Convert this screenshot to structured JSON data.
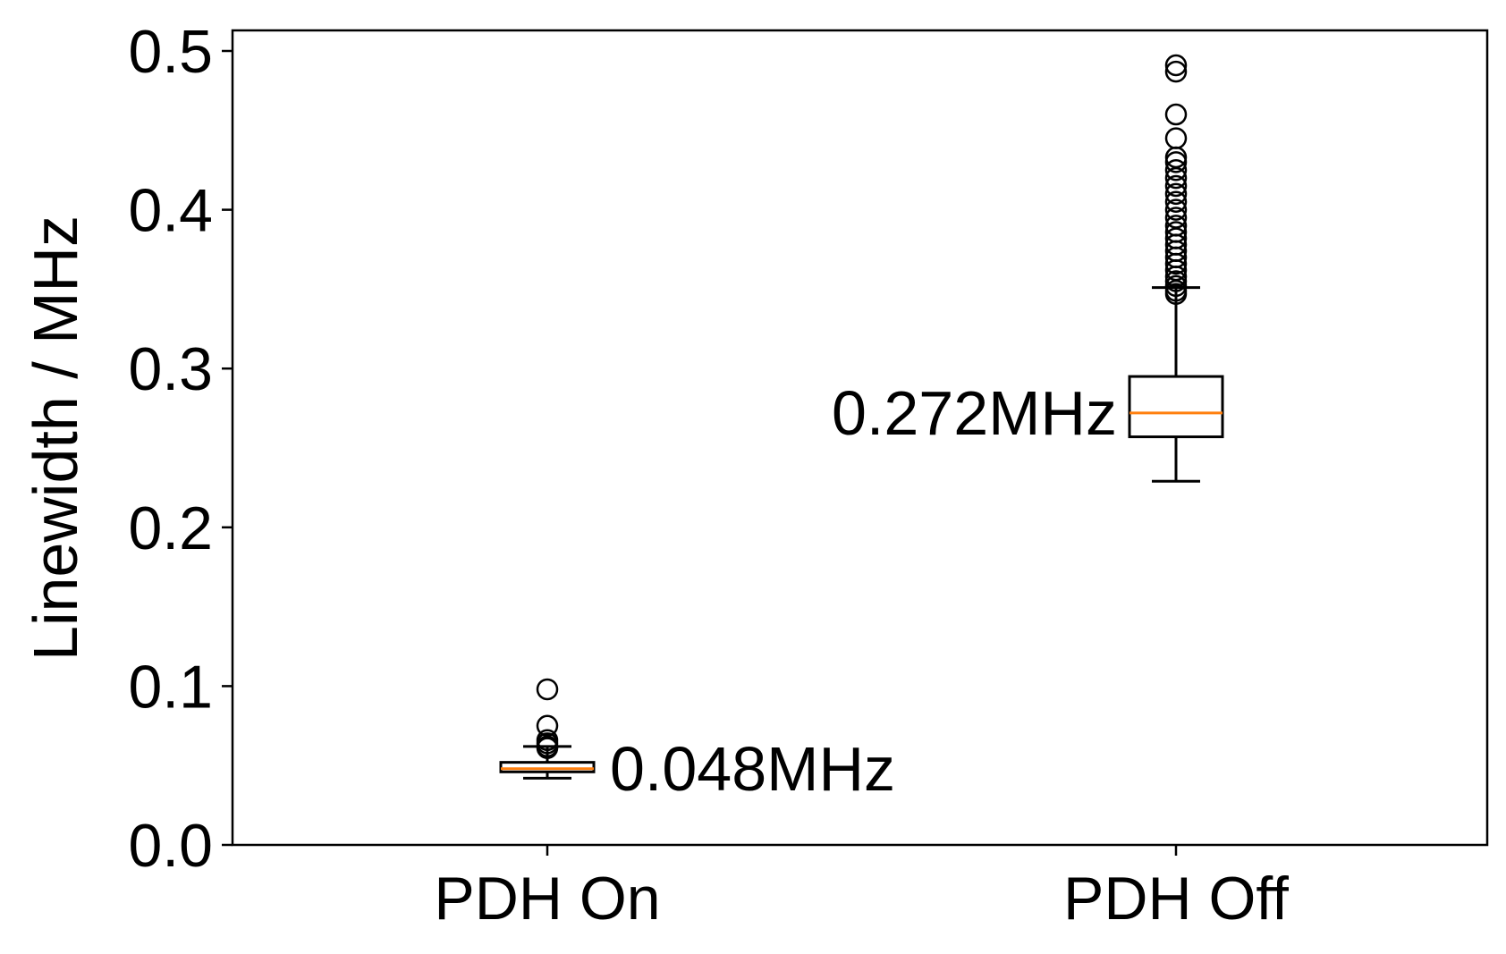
{
  "chart_data": {
    "type": "box",
    "title": "",
    "xlabel": "",
    "ylabel": "Linewidth / MHz",
    "ylim": [
      0.0,
      0.513
    ],
    "yticks": [
      "0.0",
      "0.1",
      "0.2",
      "0.3",
      "0.4",
      "0.5"
    ],
    "grid": false,
    "categories": [
      "PDH On",
      "PDH Off"
    ],
    "boxes": [
      {
        "category": "PDH On",
        "whisker_low": 0.042,
        "q1": 0.046,
        "median": 0.048,
        "q3": 0.052,
        "whisker_high": 0.062,
        "outliers": [
          0.061,
          0.062,
          0.064,
          0.066,
          0.075,
          0.098
        ],
        "annotation": "0.048MHz"
      },
      {
        "category": "PDH Off",
        "whisker_low": 0.229,
        "q1": 0.257,
        "median": 0.272,
        "q3": 0.295,
        "whisker_high": 0.351,
        "outliers": [
          0.347,
          0.349,
          0.352,
          0.355,
          0.358,
          0.362,
          0.366,
          0.37,
          0.374,
          0.378,
          0.382,
          0.386,
          0.39,
          0.395,
          0.4,
          0.405,
          0.41,
          0.415,
          0.42,
          0.425,
          0.43,
          0.433,
          0.445,
          0.46,
          0.487,
          0.491
        ],
        "annotation": "0.272MHz"
      }
    ],
    "colors": {
      "median": "#ff7f0e",
      "box": "#000000",
      "outlier": "#000000"
    }
  }
}
